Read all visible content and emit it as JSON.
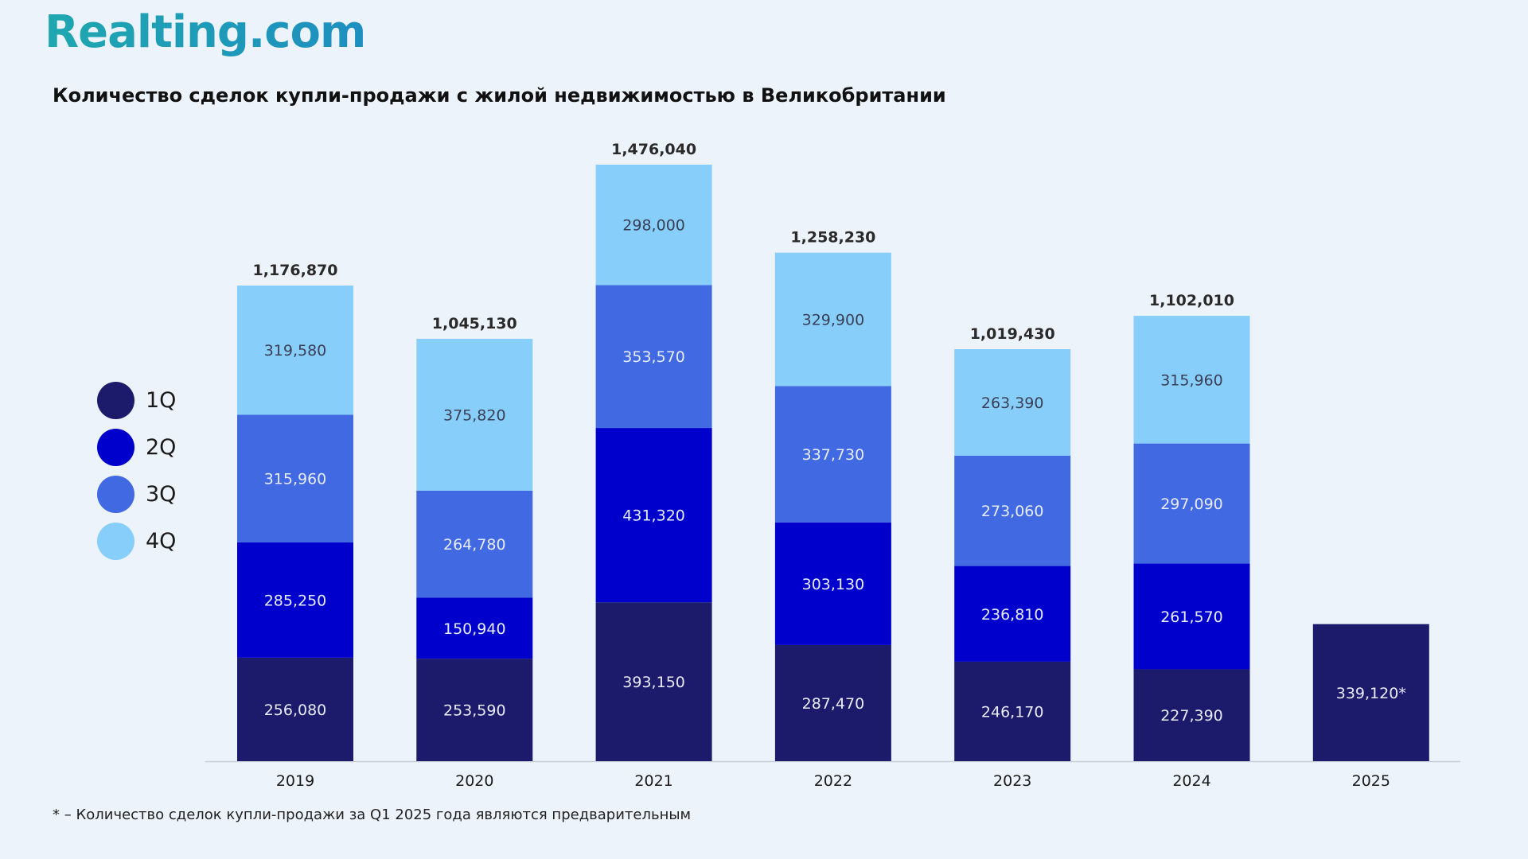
{
  "logo": "Realting.com",
  "footnote": "* – Количество сделок купли-продажи за Q1 2025 года являются предварительным",
  "chart_data": {
    "type": "bar",
    "stacked": true,
    "title": "Количество сделок купли-продажи с жилой недвижимостью в Великобритании",
    "xlabel": "",
    "ylabel": "",
    "grid": false,
    "legend_position": "left",
    "categories": [
      "2019",
      "2020",
      "2021",
      "2022",
      "2023",
      "2024",
      "2025"
    ],
    "series": [
      {
        "name": "1Q",
        "color": "#1b1a6b",
        "values": [
          256080,
          253590,
          393150,
          287470,
          246170,
          227390,
          339120
        ],
        "labels": [
          "256,080",
          "253,590",
          "393,150",
          "287,470",
          "246,170",
          "227,390",
          "339,120*"
        ]
      },
      {
        "name": "2Q",
        "color": "#0000cc",
        "values": [
          285250,
          150940,
          431320,
          303130,
          236810,
          261570,
          null
        ],
        "labels": [
          "285,250",
          "150,940",
          "431,320",
          "303,130",
          "236,810",
          "261,570",
          null
        ]
      },
      {
        "name": "3Q",
        "color": "#4169e1",
        "values": [
          315960,
          264780,
          353570,
          337730,
          273060,
          297090,
          null
        ],
        "labels": [
          "315,960",
          "264,780",
          "353,570",
          "337,730",
          "273,060",
          "297,090",
          null
        ]
      },
      {
        "name": "4Q",
        "color": "#87cefa",
        "values": [
          319580,
          375820,
          298000,
          329900,
          263390,
          315960,
          null
        ],
        "labels": [
          "319,580",
          "375,820",
          "298,000",
          "329,900",
          "263,390",
          "315,960",
          null
        ]
      }
    ],
    "totals": [
      1176870,
      1045130,
      1476040,
      1258230,
      1019430,
      1102010,
      null
    ],
    "total_labels": [
      "1,176,870",
      "1,045,130",
      "1,476,040",
      "1,258,230",
      "1,019,430",
      "1,102,010",
      null
    ],
    "ylim": [
      0,
      1476040
    ]
  }
}
